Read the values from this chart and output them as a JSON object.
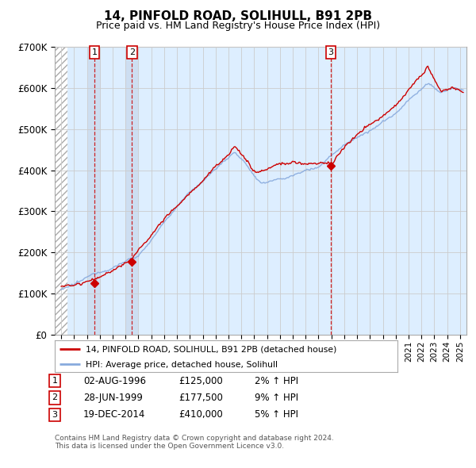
{
  "title": "14, PINFOLD ROAD, SOLIHULL, B91 2PB",
  "subtitle": "Price paid vs. HM Land Registry's House Price Index (HPI)",
  "sales": [
    {
      "date_num": 1996.583,
      "price": 125000,
      "label": "1"
    },
    {
      "date_num": 1999.493,
      "price": 177500,
      "label": "2"
    },
    {
      "date_num": 2014.962,
      "price": 410000,
      "label": "3"
    }
  ],
  "sale_info": [
    {
      "num": "1",
      "date": "02-AUG-1996",
      "price": "£125,000",
      "hpi": "2% ↑ HPI"
    },
    {
      "num": "2",
      "date": "28-JUN-1999",
      "price": "£177,500",
      "hpi": "9% ↑ HPI"
    },
    {
      "num": "3",
      "date": "19-DEC-2014",
      "price": "£410,000",
      "hpi": "5% ↑ HPI"
    }
  ],
  "ylim": [
    0,
    700000
  ],
  "xlim": [
    1993.5,
    2025.5
  ],
  "hatch_end": 1994.5,
  "legend_line1": "14, PINFOLD ROAD, SOLIHULL, B91 2PB (detached house)",
  "legend_line2": "HPI: Average price, detached house, Solihull",
  "footer": "Contains HM Land Registry data © Crown copyright and database right 2024.\nThis data is licensed under the Open Government Licence v3.0.",
  "line_color_red": "#cc0000",
  "line_color_blue": "#88aadd",
  "grid_color": "#cccccc",
  "bg_color": "#ddeeff",
  "hatch_color": "#bbbbbb",
  "highlight_color": "#ccddf0"
}
